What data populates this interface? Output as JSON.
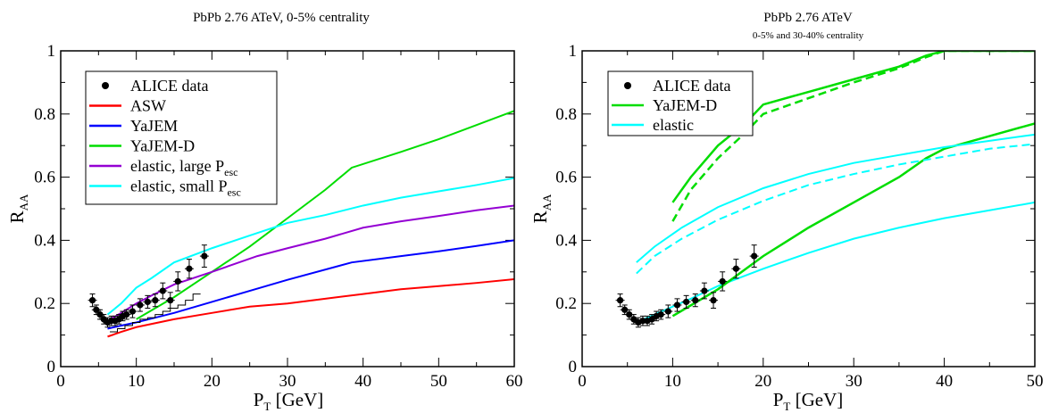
{
  "chart_data": [
    {
      "type": "line",
      "title": "PbPb 2.76 ATeV, 0-5% centrality",
      "subtitle": "",
      "xlabel": "P_T [GeV]",
      "ylabel": "R_AA",
      "xlim": [
        0,
        60
      ],
      "ylim": [
        0,
        1
      ],
      "xticks": [
        0,
        10,
        20,
        30,
        40,
        50,
        60
      ],
      "yticks": [
        0,
        0.2,
        0.4,
        0.6,
        0.8,
        1
      ],
      "xtick_labels": [
        "0",
        "10",
        "20",
        "30",
        "40",
        "50",
        "60"
      ],
      "ytick_labels": [
        "0",
        "0.2",
        "0.4",
        "0.6",
        "0.8",
        "1"
      ],
      "grid": false,
      "legend_placement": "top-left",
      "legend": [
        {
          "label": "ALICE data",
          "sub": "",
          "color": "#000000",
          "marker": "dot"
        },
        {
          "label": "ASW",
          "sub": "",
          "color": "#ff0000",
          "marker": "line"
        },
        {
          "label": "YaJEM",
          "sub": "",
          "color": "#0000ff",
          "marker": "line"
        },
        {
          "label": "YaJEM-D",
          "sub": "",
          "color": "#00dd00",
          "marker": "line"
        },
        {
          "label": "elastic, large P",
          "sub": "esc",
          "color": "#9400d3",
          "marker": "line"
        },
        {
          "label": "elastic, small P",
          "sub": "esc",
          "color": "#00ffff",
          "marker": "line"
        }
      ],
      "series": [
        {
          "color": "#ff0000",
          "dash": false,
          "width": 2,
          "x": [
            6.2,
            8,
            10,
            15,
            20,
            25,
            30,
            35,
            40,
            45,
            50,
            55,
            60
          ],
          "y": [
            0.095,
            0.11,
            0.125,
            0.15,
            0.17,
            0.19,
            0.2,
            0.215,
            0.23,
            0.245,
            0.255,
            0.265,
            0.277
          ]
        },
        {
          "color": "#0000ff",
          "dash": false,
          "width": 2,
          "x": [
            6.2,
            8,
            10,
            15,
            20,
            25,
            30,
            38.5,
            45,
            50,
            55,
            60
          ],
          "y": [
            0.12,
            0.13,
            0.14,
            0.17,
            0.205,
            0.24,
            0.275,
            0.33,
            0.35,
            0.365,
            0.382,
            0.4
          ]
        },
        {
          "color": "#00dd00",
          "dash": false,
          "width": 2,
          "x": [
            10,
            15,
            20,
            25,
            30,
            35,
            38.5,
            45,
            50,
            55,
            60
          ],
          "y": [
            0.15,
            0.22,
            0.3,
            0.38,
            0.47,
            0.56,
            0.63,
            0.68,
            0.72,
            0.765,
            0.81
          ]
        },
        {
          "color": "#9400d3",
          "dash": false,
          "width": 2,
          "x": [
            6.2,
            8,
            10,
            12,
            15,
            20,
            26,
            30,
            35,
            40,
            45,
            50,
            55,
            60
          ],
          "y": [
            0.145,
            0.17,
            0.2,
            0.225,
            0.26,
            0.3,
            0.35,
            0.375,
            0.405,
            0.44,
            0.46,
            0.477,
            0.495,
            0.51
          ]
        },
        {
          "color": "#00ffff",
          "dash": false,
          "width": 2,
          "x": [
            6.2,
            8,
            10,
            12,
            15,
            20,
            25,
            30,
            35,
            40,
            45,
            50,
            55,
            60
          ],
          "y": [
            0.165,
            0.2,
            0.25,
            0.28,
            0.33,
            0.375,
            0.415,
            0.455,
            0.48,
            0.51,
            0.535,
            0.555,
            0.575,
            0.597
          ]
        },
        {
          "color": "#000000",
          "dash": false,
          "width": 1,
          "step": true,
          "x": [
            6.5,
            7.5,
            8.5,
            9.5,
            10.5,
            11.5,
            12.5,
            13.5,
            14.5,
            15.5,
            16.5,
            17.5,
            18.5
          ],
          "y": [
            0.11,
            0.12,
            0.13,
            0.14,
            0.15,
            0.155,
            0.165,
            0.175,
            0.185,
            0.195,
            0.21,
            0.23,
            0.23
          ]
        }
      ],
      "data_points": {
        "x": [
          4.2,
          4.7,
          5.2,
          5.7,
          6.2,
          6.7,
          7.2,
          7.7,
          8.2,
          8.7,
          9.5,
          10.5,
          11.5,
          12.5,
          13.5,
          14.5,
          15.5,
          17,
          19
        ],
        "y": [
          0.21,
          0.18,
          0.165,
          0.15,
          0.14,
          0.145,
          0.145,
          0.15,
          0.16,
          0.165,
          0.175,
          0.195,
          0.205,
          0.21,
          0.24,
          0.21,
          0.27,
          0.31,
          0.35
        ],
        "err": [
          0.02,
          0.015,
          0.015,
          0.015,
          0.015,
          0.015,
          0.015,
          0.015,
          0.015,
          0.015,
          0.02,
          0.02,
          0.02,
          0.02,
          0.025,
          0.025,
          0.03,
          0.03,
          0.035
        ]
      }
    },
    {
      "type": "line",
      "title": "PbPb 2.76 ATeV",
      "subtitle": "0-5% and 30-40% centrality",
      "xlabel": "P_T [GeV]",
      "ylabel": "R_AA",
      "xlim": [
        0,
        50
      ],
      "ylim": [
        0,
        1
      ],
      "xticks": [
        0,
        10,
        20,
        30,
        40,
        50
      ],
      "yticks": [
        0,
        0.2,
        0.4,
        0.6,
        0.8,
        1
      ],
      "xtick_labels": [
        "0",
        "10",
        "20",
        "30",
        "40",
        "50"
      ],
      "ytick_labels": [
        "0",
        "0.2",
        "0.4",
        "0.6",
        "0.8",
        "1"
      ],
      "grid": false,
      "legend_placement": "top-left",
      "legend": [
        {
          "label": "ALICE data",
          "sub": "",
          "color": "#000000",
          "marker": "dot"
        },
        {
          "label": "YaJEM-D",
          "sub": "",
          "color": "#00dd00",
          "marker": "line"
        },
        {
          "label": "elastic",
          "sub": "",
          "color": "#00ffff",
          "marker": "line"
        }
      ],
      "series": [
        {
          "color": "#00ffff",
          "dash": false,
          "width": 2,
          "x": [
            6,
            8,
            10,
            12,
            15,
            20,
            25,
            30,
            35,
            40,
            45,
            50
          ],
          "y": [
            0.14,
            0.165,
            0.19,
            0.215,
            0.255,
            0.31,
            0.36,
            0.405,
            0.44,
            0.47,
            0.495,
            0.52
          ]
        },
        {
          "color": "#00dd00",
          "dash": false,
          "width": 2.5,
          "x": [
            10,
            15,
            20,
            25,
            30,
            35,
            38,
            40,
            45,
            50
          ],
          "y": [
            0.16,
            0.245,
            0.35,
            0.44,
            0.52,
            0.6,
            0.66,
            0.69,
            0.73,
            0.77
          ]
        },
        {
          "color": "#00ffff",
          "dash": false,
          "width": 2,
          "x": [
            6,
            8,
            11,
            15,
            20,
            25,
            30,
            35,
            40,
            45,
            50
          ],
          "y": [
            0.33,
            0.38,
            0.44,
            0.505,
            0.565,
            0.61,
            0.645,
            0.67,
            0.695,
            0.715,
            0.735
          ]
        },
        {
          "color": "#00ffff",
          "dash": true,
          "width": 2,
          "x": [
            6,
            8,
            11,
            15,
            20,
            25,
            30,
            35,
            40,
            45,
            50
          ],
          "y": [
            0.295,
            0.35,
            0.405,
            0.465,
            0.525,
            0.575,
            0.61,
            0.64,
            0.665,
            0.69,
            0.705
          ]
        },
        {
          "color": "#00dd00",
          "dash": false,
          "width": 2.5,
          "x": [
            10,
            12,
            15,
            18,
            20,
            25,
            30,
            35,
            38,
            40,
            45,
            50
          ],
          "y": [
            0.52,
            0.6,
            0.7,
            0.77,
            0.83,
            0.87,
            0.91,
            0.95,
            0.985,
            1.0,
            1.0,
            1.0
          ]
        },
        {
          "color": "#00dd00",
          "dash": true,
          "width": 2.5,
          "x": [
            10,
            12,
            15,
            18,
            20,
            25,
            30,
            35,
            38,
            40,
            45,
            50
          ],
          "y": [
            0.46,
            0.56,
            0.66,
            0.74,
            0.8,
            0.85,
            0.9,
            0.945,
            0.98,
            1.0,
            1.0,
            1.0
          ]
        }
      ],
      "data_points": {
        "x": [
          4.2,
          4.7,
          5.2,
          5.7,
          6.2,
          6.7,
          7.2,
          7.7,
          8.2,
          8.7,
          9.5,
          10.5,
          11.5,
          12.5,
          13.5,
          14.5,
          15.5,
          17,
          19
        ],
        "y": [
          0.21,
          0.18,
          0.165,
          0.15,
          0.14,
          0.145,
          0.145,
          0.15,
          0.16,
          0.165,
          0.175,
          0.195,
          0.205,
          0.21,
          0.24,
          0.21,
          0.27,
          0.31,
          0.35
        ],
        "err": [
          0.02,
          0.015,
          0.015,
          0.015,
          0.015,
          0.015,
          0.015,
          0.015,
          0.015,
          0.015,
          0.02,
          0.02,
          0.02,
          0.02,
          0.025,
          0.025,
          0.03,
          0.03,
          0.035
        ]
      }
    }
  ]
}
